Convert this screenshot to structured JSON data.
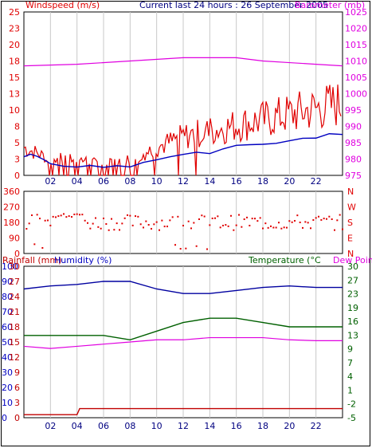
{
  "header": {
    "left_title": "Windspeed (m/s)",
    "center_title": "Current last 24 hours : 26 September 2005",
    "right_title": "Barometer (mb)"
  },
  "colors": {
    "windspeed": "#e00000",
    "wind_avg": "#0000c0",
    "barometer": "#e000e0",
    "direction": "#e00000",
    "rainfall": "#c00000",
    "humidity": "#0000a0",
    "temperature": "#006000",
    "dewpoint": "#e000e0",
    "grid": "#c8c8c8",
    "frame": "#000000"
  },
  "chart_data": [
    {
      "type": "line",
      "name": "wind-barometer",
      "x_ticks": [
        "02",
        "04",
        "06",
        "08",
        "10",
        "12",
        "14",
        "16",
        "18",
        "20",
        "22"
      ],
      "left_axis": {
        "ticks": [
          "0",
          "3",
          "5",
          "8",
          "10",
          "13",
          "15",
          "18",
          "20",
          "23",
          "25"
        ],
        "range": [
          0,
          25
        ],
        "color": "#e00000",
        "label": "Windspeed (m/s)"
      },
      "right_axis": {
        "ticks": [
          "975",
          "980",
          "985",
          "990",
          "995",
          "1000",
          "1005",
          "1010",
          "1015",
          "1020",
          "1025"
        ],
        "range": [
          975,
          1025
        ],
        "color": "#e000e0",
        "label": "Barometer (mb)"
      },
      "barometer": {
        "x": [
          0,
          4,
          8,
          12,
          14,
          16,
          18,
          20,
          22,
          24
        ],
        "y": [
          1008.5,
          1009,
          1010,
          1011,
          1011,
          1011,
          1010,
          1009.5,
          1009,
          1008.5
        ]
      },
      "wind_avg": {
        "x": [
          0,
          0.5,
          1,
          1.5,
          2,
          3,
          4,
          5,
          6,
          7,
          8,
          9,
          10,
          11,
          12,
          13,
          14,
          15,
          16,
          17,
          18,
          19,
          20,
          21,
          22,
          23,
          24
        ],
        "y": [
          3,
          3.5,
          3,
          2.5,
          1.5,
          1.2,
          1.2,
          1.5,
          1.5,
          1.5,
          1.5,
          2,
          2.5,
          3,
          3.2,
          3.5,
          3.5,
          4,
          4.5,
          4.7,
          5,
          5.2,
          5.3,
          5.7,
          6,
          6.3,
          6.5
        ]
      },
      "wind_gust_envelope": {
        "x": [
          0,
          2,
          4,
          6,
          8,
          10,
          12,
          14,
          16,
          18,
          20,
          22,
          24
        ],
        "y": [
          5,
          3,
          3,
          2,
          3,
          5,
          7,
          8,
          9,
          10,
          11,
          12,
          13
        ]
      }
    },
    {
      "type": "scatter",
      "name": "wind-direction",
      "left_axis": {
        "ticks": [
          "360",
          "270",
          "180",
          "90",
          "0"
        ],
        "range": [
          0,
          360
        ]
      },
      "right_axis": {
        "ticks": [
          "N",
          "W",
          "S",
          "E",
          "N"
        ]
      },
      "x_ticks": [
        "02",
        "04",
        "06",
        "08",
        "10",
        "12",
        "14",
        "16",
        "18",
        "20",
        "22"
      ],
      "typical_direction_deg": 180
    },
    {
      "type": "line",
      "name": "rain-humidity-temperature",
      "header_left": "Rainfall (mm)",
      "header_mid": "Humidity (%)",
      "header_right": "Temperature (°C) Dew Point",
      "rain_axis": {
        "ticks": [
          "0",
          "5",
          "10",
          "15",
          "20",
          "25",
          "30",
          "35",
          "40",
          "45",
          "50",
          "55",
          "60",
          "65",
          "70",
          "75",
          "80",
          "85",
          "90",
          "95",
          "100"
        ],
        "shown": [
          "0",
          "10",
          "20",
          "30",
          "40",
          "50",
          "60",
          "70",
          "80",
          "90",
          "100"
        ],
        "color": "#c00000"
      },
      "humidity_axis": {
        "ticks": [
          "0",
          "3",
          "6",
          "9",
          "12",
          "15",
          "18",
          "21",
          "24",
          "27",
          "30"
        ],
        "color": "#0000c0"
      },
      "temp_axis": {
        "ticks": [
          "-5",
          "-2",
          "1",
          "4",
          "7",
          "9",
          "13",
          "16",
          "19",
          "23",
          "27",
          "30"
        ],
        "color": "#006000"
      },
      "x_ticks": [
        "02",
        "04",
        "06",
        "08",
        "10",
        "12",
        "14",
        "16",
        "18",
        "20",
        "22"
      ],
      "humidity": {
        "x": [
          0,
          1,
          2,
          4,
          6,
          8,
          10,
          12,
          14,
          16,
          18,
          20,
          22,
          24
        ],
        "y": [
          85,
          86,
          87,
          88,
          90,
          90,
          85,
          82,
          82,
          84,
          86,
          87,
          86,
          86
        ]
      },
      "temperature": {
        "x": [
          0,
          2,
          4,
          6,
          8,
          10,
          12,
          14,
          16,
          18,
          20,
          22,
          24
        ],
        "y": [
          14,
          14,
          14,
          14,
          13,
          15,
          17,
          18,
          18,
          17,
          16,
          16,
          16
        ]
      },
      "dewpoint": {
        "x": [
          0,
          2,
          4,
          6,
          8,
          10,
          12,
          14,
          16,
          18,
          20,
          22,
          24
        ],
        "y": [
          11.5,
          11,
          11.5,
          12,
          12.5,
          13,
          13,
          13.5,
          13.5,
          13.5,
          13,
          12.8,
          12.8
        ]
      },
      "rainfall": {
        "x": [
          0,
          4,
          4.2,
          24
        ],
        "y": [
          0.5,
          0.5,
          1.5,
          1.5
        ]
      }
    }
  ],
  "texts": {
    "dir_right_labels": [
      "N",
      "W",
      "S",
      "E",
      "N"
    ],
    "rain_header": "Rainfall (mm)",
    "humidity_header": "Humidity (%)",
    "temp_header": "Temperature (°C",
    "dew_header": "Dew Point"
  }
}
